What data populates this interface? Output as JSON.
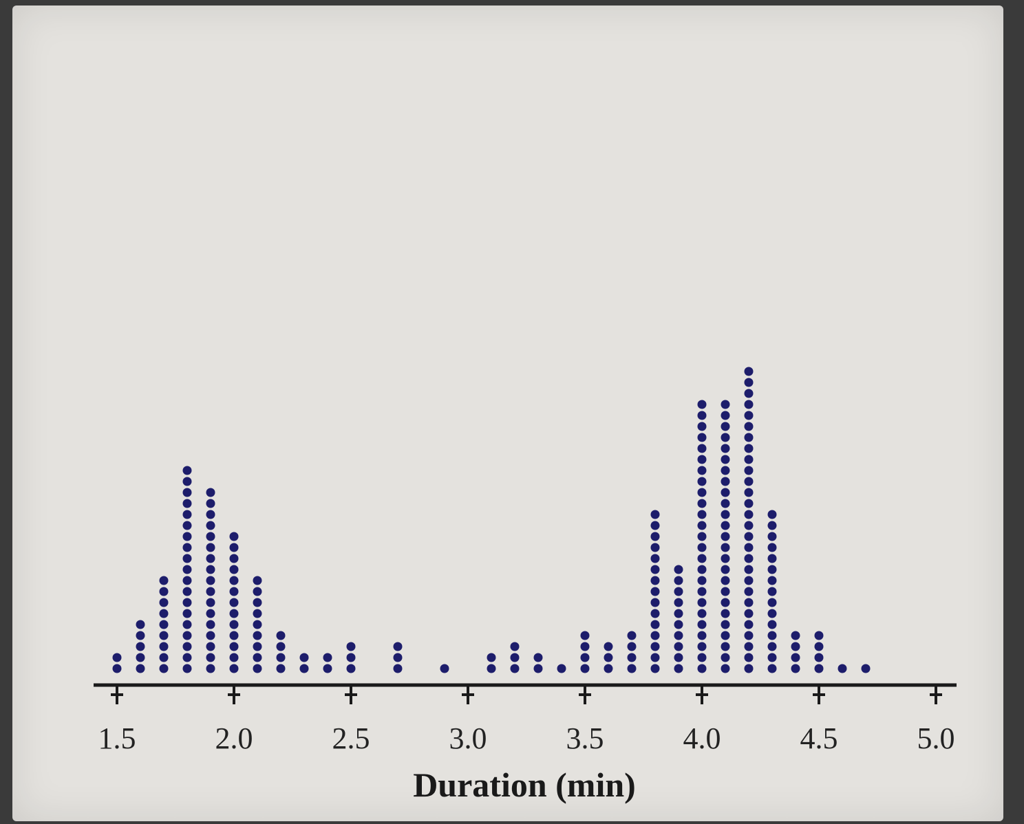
{
  "chart_data": {
    "type": "dotplot",
    "title": "",
    "xlabel": "Duration (min)",
    "ylabel": "",
    "xlim": [
      1.5,
      5.0
    ],
    "x_ticks": [
      1.5,
      2.0,
      2.5,
      3.0,
      3.5,
      4.0,
      4.5,
      5.0
    ],
    "x_tick_labels": [
      "1.5",
      "2.0",
      "2.5",
      "3.0",
      "3.5",
      "4.0",
      "4.5",
      "5.0"
    ],
    "bin_width": 0.1,
    "x": [
      1.5,
      1.6,
      1.7,
      1.8,
      1.9,
      2.0,
      2.1,
      2.2,
      2.3,
      2.4,
      2.5,
      2.6,
      2.7,
      2.8,
      2.9,
      3.0,
      3.1,
      3.2,
      3.3,
      3.4,
      3.5,
      3.6,
      3.7,
      3.8,
      3.9,
      4.0,
      4.1,
      4.2,
      4.3,
      4.4,
      4.5,
      4.6,
      4.7,
      4.8,
      4.9,
      5.0
    ],
    "counts": [
      2,
      5,
      9,
      19,
      17,
      13,
      9,
      4,
      2,
      2,
      3,
      0,
      3,
      0,
      1,
      0,
      2,
      3,
      2,
      1,
      4,
      3,
      4,
      15,
      10,
      25,
      25,
      28,
      15,
      4,
      4,
      1,
      1,
      0,
      0,
      0
    ],
    "dot_color": "#1d1d6b",
    "background_color": "#e4e2de"
  }
}
